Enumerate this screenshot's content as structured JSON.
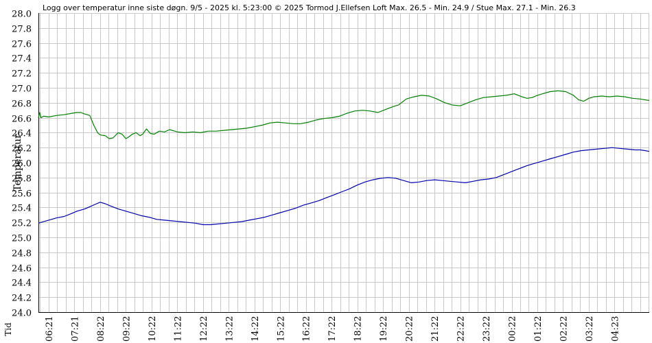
{
  "chart_data": {
    "type": "line",
    "title": "Logg over temperatur inne siste døgn.  9/5 - 2025 kl. 5:23:00  © 2025 Tormod J.Ellefsen   Loft Max. 26.5 - Min. 24.9 / Stue Max. 27.1 - Min. 26.3",
    "ylabel": "Temperatur",
    "xlabel": "Tid",
    "ylim": [
      24.0,
      28.0
    ],
    "yticks": [
      "24.0",
      "24.2",
      "24.4",
      "24.6",
      "24.8",
      "25.0",
      "25.2",
      "25.4",
      "25.6",
      "25.8",
      "26.0",
      "26.2",
      "26.4",
      "26.6",
      "26.8",
      "27.0",
      "27.2",
      "27.4",
      "27.6",
      "27.8",
      "28.0"
    ],
    "xlim": [
      5.6,
      29.35
    ],
    "xticks": [
      {
        "x": 6,
        "label": "06:21"
      },
      {
        "x": 7,
        "label": "07:21"
      },
      {
        "x": 8,
        "label": "08:22"
      },
      {
        "x": 9,
        "label": "09:22"
      },
      {
        "x": 10,
        "label": "10:22"
      },
      {
        "x": 11,
        "label": "11:22"
      },
      {
        "x": 12,
        "label": "12:22"
      },
      {
        "x": 13,
        "label": "13:22"
      },
      {
        "x": 14,
        "label": "14:22"
      },
      {
        "x": 15,
        "label": "15:22"
      },
      {
        "x": 16,
        "label": "16:22"
      },
      {
        "x": 17,
        "label": "17:22"
      },
      {
        "x": 18,
        "label": "18:22"
      },
      {
        "x": 19,
        "label": "19:22"
      },
      {
        "x": 20,
        "label": "20:22"
      },
      {
        "x": 21,
        "label": "21:22"
      },
      {
        "x": 22,
        "label": "22:22"
      },
      {
        "x": 23,
        "label": "23:22"
      },
      {
        "x": 24,
        "label": "00:22"
      },
      {
        "x": 25,
        "label": "01:22"
      },
      {
        "x": 26,
        "label": "02:22"
      },
      {
        "x": 27,
        "label": "03:22"
      },
      {
        "x": 28,
        "label": "04:23"
      }
    ],
    "grid": true,
    "series": [
      {
        "name": "Stue",
        "color": "#008000",
        "x": [
          5.6,
          5.65,
          5.7,
          5.8,
          6.0,
          6.3,
          6.6,
          6.9,
          7.1,
          7.25,
          7.4,
          7.6,
          7.75,
          7.9,
          8.0,
          8.2,
          8.35,
          8.5,
          8.7,
          8.85,
          9.0,
          9.1,
          9.25,
          9.4,
          9.55,
          9.65,
          9.8,
          9.95,
          10.1,
          10.3,
          10.5,
          10.7,
          11.0,
          11.3,
          11.6,
          11.9,
          12.2,
          12.5,
          12.8,
          13.1,
          13.4,
          13.7,
          14.0,
          14.3,
          14.6,
          14.9,
          15.2,
          15.5,
          15.8,
          16.1,
          16.4,
          16.7,
          17.0,
          17.3,
          17.6,
          17.9,
          18.2,
          18.5,
          18.8,
          19.1,
          19.4,
          19.6,
          19.9,
          20.2,
          20.5,
          20.8,
          21.1,
          21.4,
          21.7,
          22.0,
          22.3,
          22.6,
          22.9,
          23.2,
          23.5,
          23.8,
          24.1,
          24.4,
          24.6,
          24.8,
          25.0,
          25.2,
          25.5,
          25.8,
          26.1,
          26.4,
          26.6,
          26.8,
          27.0,
          27.2,
          27.5,
          27.8,
          28.1,
          28.4,
          28.7,
          29.0,
          29.35
        ],
        "y": [
          26.6,
          26.67,
          26.6,
          26.62,
          26.61,
          26.63,
          26.64,
          26.66,
          26.67,
          26.67,
          26.65,
          26.63,
          26.5,
          26.4,
          26.37,
          26.36,
          26.32,
          26.33,
          26.4,
          26.38,
          26.32,
          26.34,
          26.38,
          26.4,
          26.36,
          26.38,
          26.45,
          26.39,
          26.38,
          26.42,
          26.41,
          26.44,
          26.41,
          26.4,
          26.41,
          26.4,
          26.42,
          26.42,
          26.43,
          26.44,
          26.45,
          26.46,
          26.48,
          26.5,
          26.53,
          26.54,
          26.53,
          26.52,
          26.52,
          26.54,
          26.57,
          26.59,
          26.6,
          26.62,
          26.66,
          26.69,
          26.7,
          26.69,
          26.67,
          26.71,
          26.75,
          26.77,
          26.85,
          26.88,
          26.9,
          26.89,
          26.85,
          26.8,
          26.77,
          26.76,
          26.8,
          26.84,
          26.87,
          26.88,
          26.89,
          26.9,
          26.92,
          26.88,
          26.86,
          26.87,
          26.9,
          26.92,
          26.95,
          26.96,
          26.95,
          26.9,
          26.84,
          26.82,
          26.86,
          26.88,
          26.89,
          26.88,
          26.89,
          26.88,
          26.86,
          26.85,
          26.83
        ]
      },
      {
        "name": "Loft",
        "color": "#0000b0",
        "x": [
          5.6,
          5.8,
          6.0,
          6.3,
          6.6,
          6.9,
          7.1,
          7.4,
          7.6,
          7.8,
          8.0,
          8.2,
          8.4,
          8.7,
          9.0,
          9.3,
          9.6,
          9.9,
          10.2,
          10.5,
          10.8,
          11.1,
          11.4,
          11.7,
          12.0,
          12.3,
          12.6,
          12.9,
          13.2,
          13.5,
          13.8,
          14.1,
          14.4,
          14.7,
          15.0,
          15.3,
          15.6,
          15.9,
          16.2,
          16.5,
          16.8,
          17.1,
          17.4,
          17.7,
          18.0,
          18.3,
          18.6,
          18.9,
          19.2,
          19.5,
          19.8,
          20.1,
          20.4,
          20.7,
          21.0,
          21.3,
          21.6,
          21.9,
          22.2,
          22.5,
          22.8,
          23.1,
          23.4,
          23.7,
          24.0,
          24.3,
          24.6,
          24.9,
          25.2,
          25.5,
          25.8,
          26.1,
          26.4,
          26.7,
          27.0,
          27.3,
          27.6,
          27.9,
          28.2,
          28.5,
          28.8,
          29.0,
          29.2,
          29.35
        ],
        "y": [
          25.19,
          25.21,
          25.23,
          25.26,
          25.28,
          25.32,
          25.35,
          25.38,
          25.41,
          25.44,
          25.47,
          25.45,
          25.42,
          25.38,
          25.35,
          25.32,
          25.29,
          25.27,
          25.24,
          25.23,
          25.22,
          25.21,
          25.2,
          25.19,
          25.17,
          25.17,
          25.18,
          25.19,
          25.2,
          25.21,
          25.23,
          25.25,
          25.27,
          25.3,
          25.33,
          25.36,
          25.39,
          25.43,
          25.46,
          25.49,
          25.53,
          25.57,
          25.61,
          25.65,
          25.7,
          25.74,
          25.77,
          25.79,
          25.8,
          25.79,
          25.76,
          25.73,
          25.74,
          25.76,
          25.77,
          25.76,
          25.75,
          25.74,
          25.73,
          25.75,
          25.77,
          25.78,
          25.8,
          25.84,
          25.88,
          25.92,
          25.96,
          25.99,
          26.02,
          26.05,
          26.08,
          26.11,
          26.14,
          26.16,
          26.17,
          26.18,
          26.19,
          26.2,
          26.19,
          26.18,
          26.17,
          26.17,
          26.16,
          26.15
        ]
      }
    ]
  }
}
